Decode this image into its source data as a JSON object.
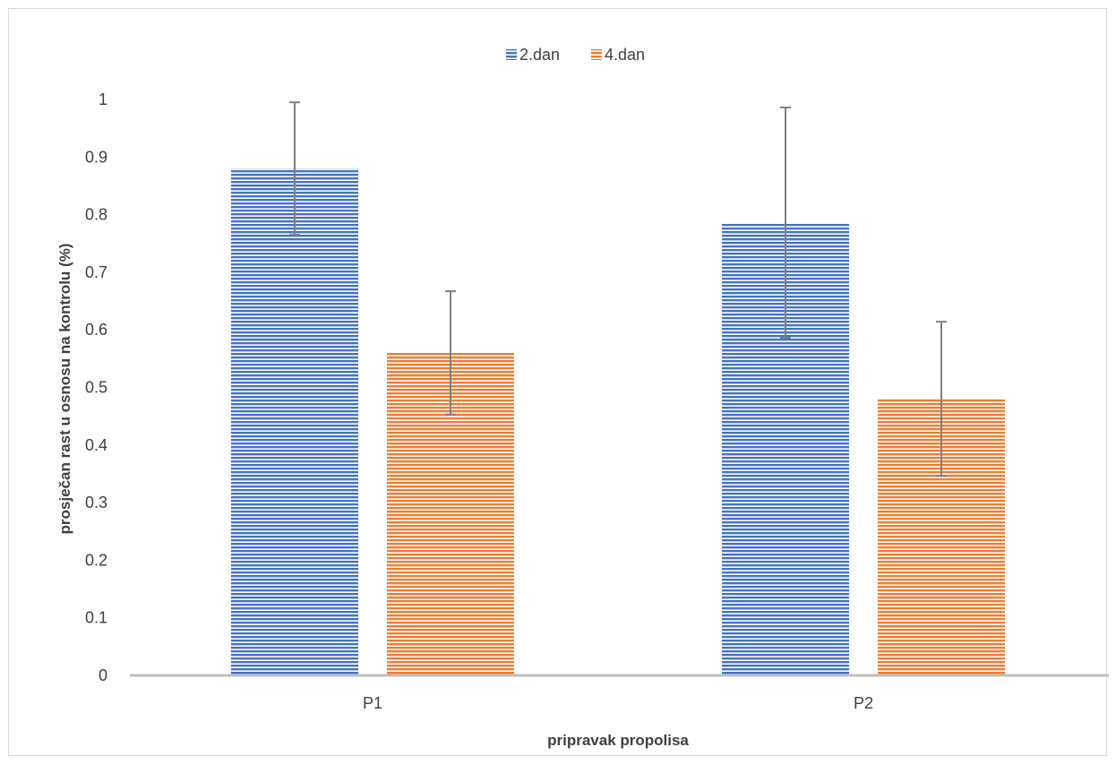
{
  "chart_data": {
    "type": "bar",
    "title": "",
    "xlabel": "pripravak propolisa",
    "ylabel": "prosječan rast u osnosu na kontrolu (%)",
    "categories": [
      "P1",
      "P2"
    ],
    "ylim": [
      0,
      1
    ],
    "yticks": [
      0,
      0.1,
      0.2,
      0.3,
      0.4,
      0.5,
      0.6,
      0.7,
      0.8,
      0.9,
      1
    ],
    "ytick_labels": [
      "0",
      "0.1",
      "0.2",
      "0.3",
      "0.4",
      "0.5",
      "0.6",
      "0.7",
      "0.8",
      "0.9",
      "1"
    ],
    "grid": false,
    "legend_position": "top-center",
    "series": [
      {
        "name": "2.dan",
        "color": "#4472C4",
        "values": [
          0.88,
          0.786
        ],
        "error": [
          0.115,
          0.2
        ]
      },
      {
        "name": "4.dan",
        "color": "#ED7D31",
        "values": [
          0.56,
          0.48
        ],
        "error": [
          0.107,
          0.134
        ]
      }
    ]
  }
}
